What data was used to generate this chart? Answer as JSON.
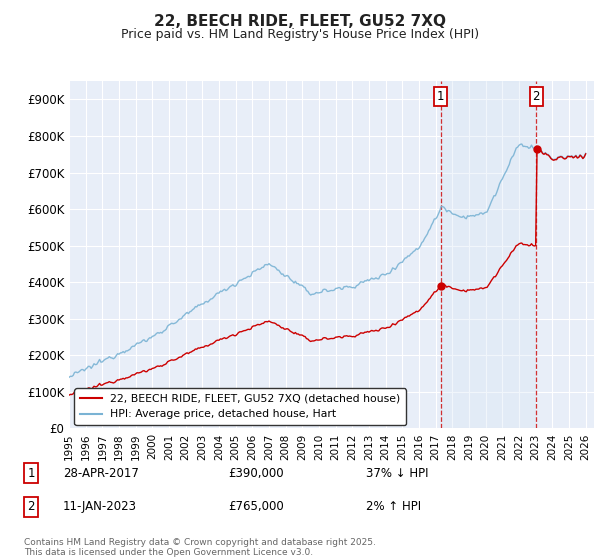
{
  "title": "22, BEECH RIDE, FLEET, GU52 7XQ",
  "subtitle": "Price paid vs. HM Land Registry's House Price Index (HPI)",
  "ylim": [
    0,
    950000
  ],
  "yticks": [
    0,
    100000,
    200000,
    300000,
    400000,
    500000,
    600000,
    700000,
    800000,
    900000
  ],
  "ytick_labels": [
    "£0",
    "£100K",
    "£200K",
    "£300K",
    "£400K",
    "£500K",
    "£600K",
    "£700K",
    "£800K",
    "£900K"
  ],
  "xlim_start": 1995.0,
  "xlim_end": 2026.5,
  "hpi_color": "#7ab3d4",
  "price_color": "#cc0000",
  "shade_color": "#d8e8f5",
  "sale1_year": 2017,
  "sale1_month": 4,
  "sale1_price": 390000,
  "sale2_year": 2023,
  "sale2_month": 1,
  "sale2_price": 765000,
  "legend_entry1": "22, BEECH RIDE, FLEET, GU52 7XQ (detached house)",
  "legend_entry2": "HPI: Average price, detached house, Hart",
  "annotation1": "28-APR-2017",
  "annotation1_price": "£390,000",
  "annotation1_hpi": "37% ↓ HPI",
  "annotation2": "11-JAN-2023",
  "annotation2_price": "£765,000",
  "annotation2_hpi": "2% ↑ HPI",
  "footnote": "Contains HM Land Registry data © Crown copyright and database right 2025.\nThis data is licensed under the Open Government Licence v3.0.",
  "bg_color": "#e8eef8",
  "grid_color": "#ffffff"
}
